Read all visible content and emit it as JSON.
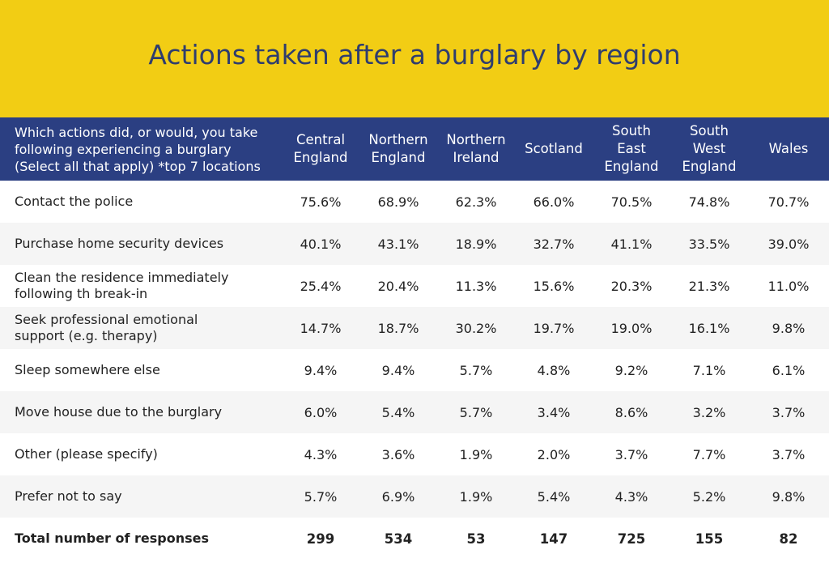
{
  "chart_data": {
    "type": "table",
    "title": "Actions taken after a burglary by region",
    "row_header": "Which actions did, or would, you take\nfollowing experiencing a burglary\n(Select all that apply) *top 7 locations",
    "columns": [
      "Central\nEngland",
      "Northern\nEngland",
      "Northern\nIreland",
      "Scotland",
      "South\nEast\nEngland",
      "South\nWest\nEngland",
      "Wales"
    ],
    "rows": [
      {
        "label": "Contact the police",
        "values": [
          "75.6%",
          "68.9%",
          "62.3%",
          "66.0%",
          "70.5%",
          "74.8%",
          "70.7%"
        ]
      },
      {
        "label": "Purchase home security devices",
        "values": [
          "40.1%",
          "43.1%",
          "18.9%",
          "32.7%",
          "41.1%",
          "33.5%",
          "39.0%"
        ]
      },
      {
        "label": "Clean the residence immediately\nfollowing th break-in",
        "values": [
          "25.4%",
          "20.4%",
          "11.3%",
          "15.6%",
          "20.3%",
          "21.3%",
          "11.0%"
        ]
      },
      {
        "label": "Seek professional emotional\nsupport (e.g. therapy)",
        "values": [
          "14.7%",
          "18.7%",
          "30.2%",
          "19.7%",
          "19.0%",
          "16.1%",
          "9.8%"
        ]
      },
      {
        "label": "Sleep somewhere else",
        "values": [
          "9.4%",
          "9.4%",
          "5.7%",
          "4.8%",
          "9.2%",
          "7.1%",
          "6.1%"
        ]
      },
      {
        "label": "Move house due to the burglary",
        "values": [
          "6.0%",
          "5.4%",
          "5.7%",
          "3.4%",
          "8.6%",
          "3.2%",
          "3.7%"
        ]
      },
      {
        "label": "Other (please specify)",
        "values": [
          "4.3%",
          "3.6%",
          "1.9%",
          "2.0%",
          "3.7%",
          "7.7%",
          "3.7%"
        ]
      },
      {
        "label": "Prefer not to say",
        "values": [
          "5.7%",
          "6.9%",
          "1.9%",
          "5.4%",
          "4.3%",
          "5.2%",
          "9.8%"
        ]
      }
    ],
    "total": {
      "label": "Total number of responses",
      "values": [
        "299",
        "534",
        "53",
        "147",
        "725",
        "155",
        "82"
      ]
    }
  },
  "colors": {
    "banner": "#f2cd14",
    "title_text": "#2f3d6e",
    "header_background": "#2b3f82",
    "header_text": "#ffffff"
  }
}
